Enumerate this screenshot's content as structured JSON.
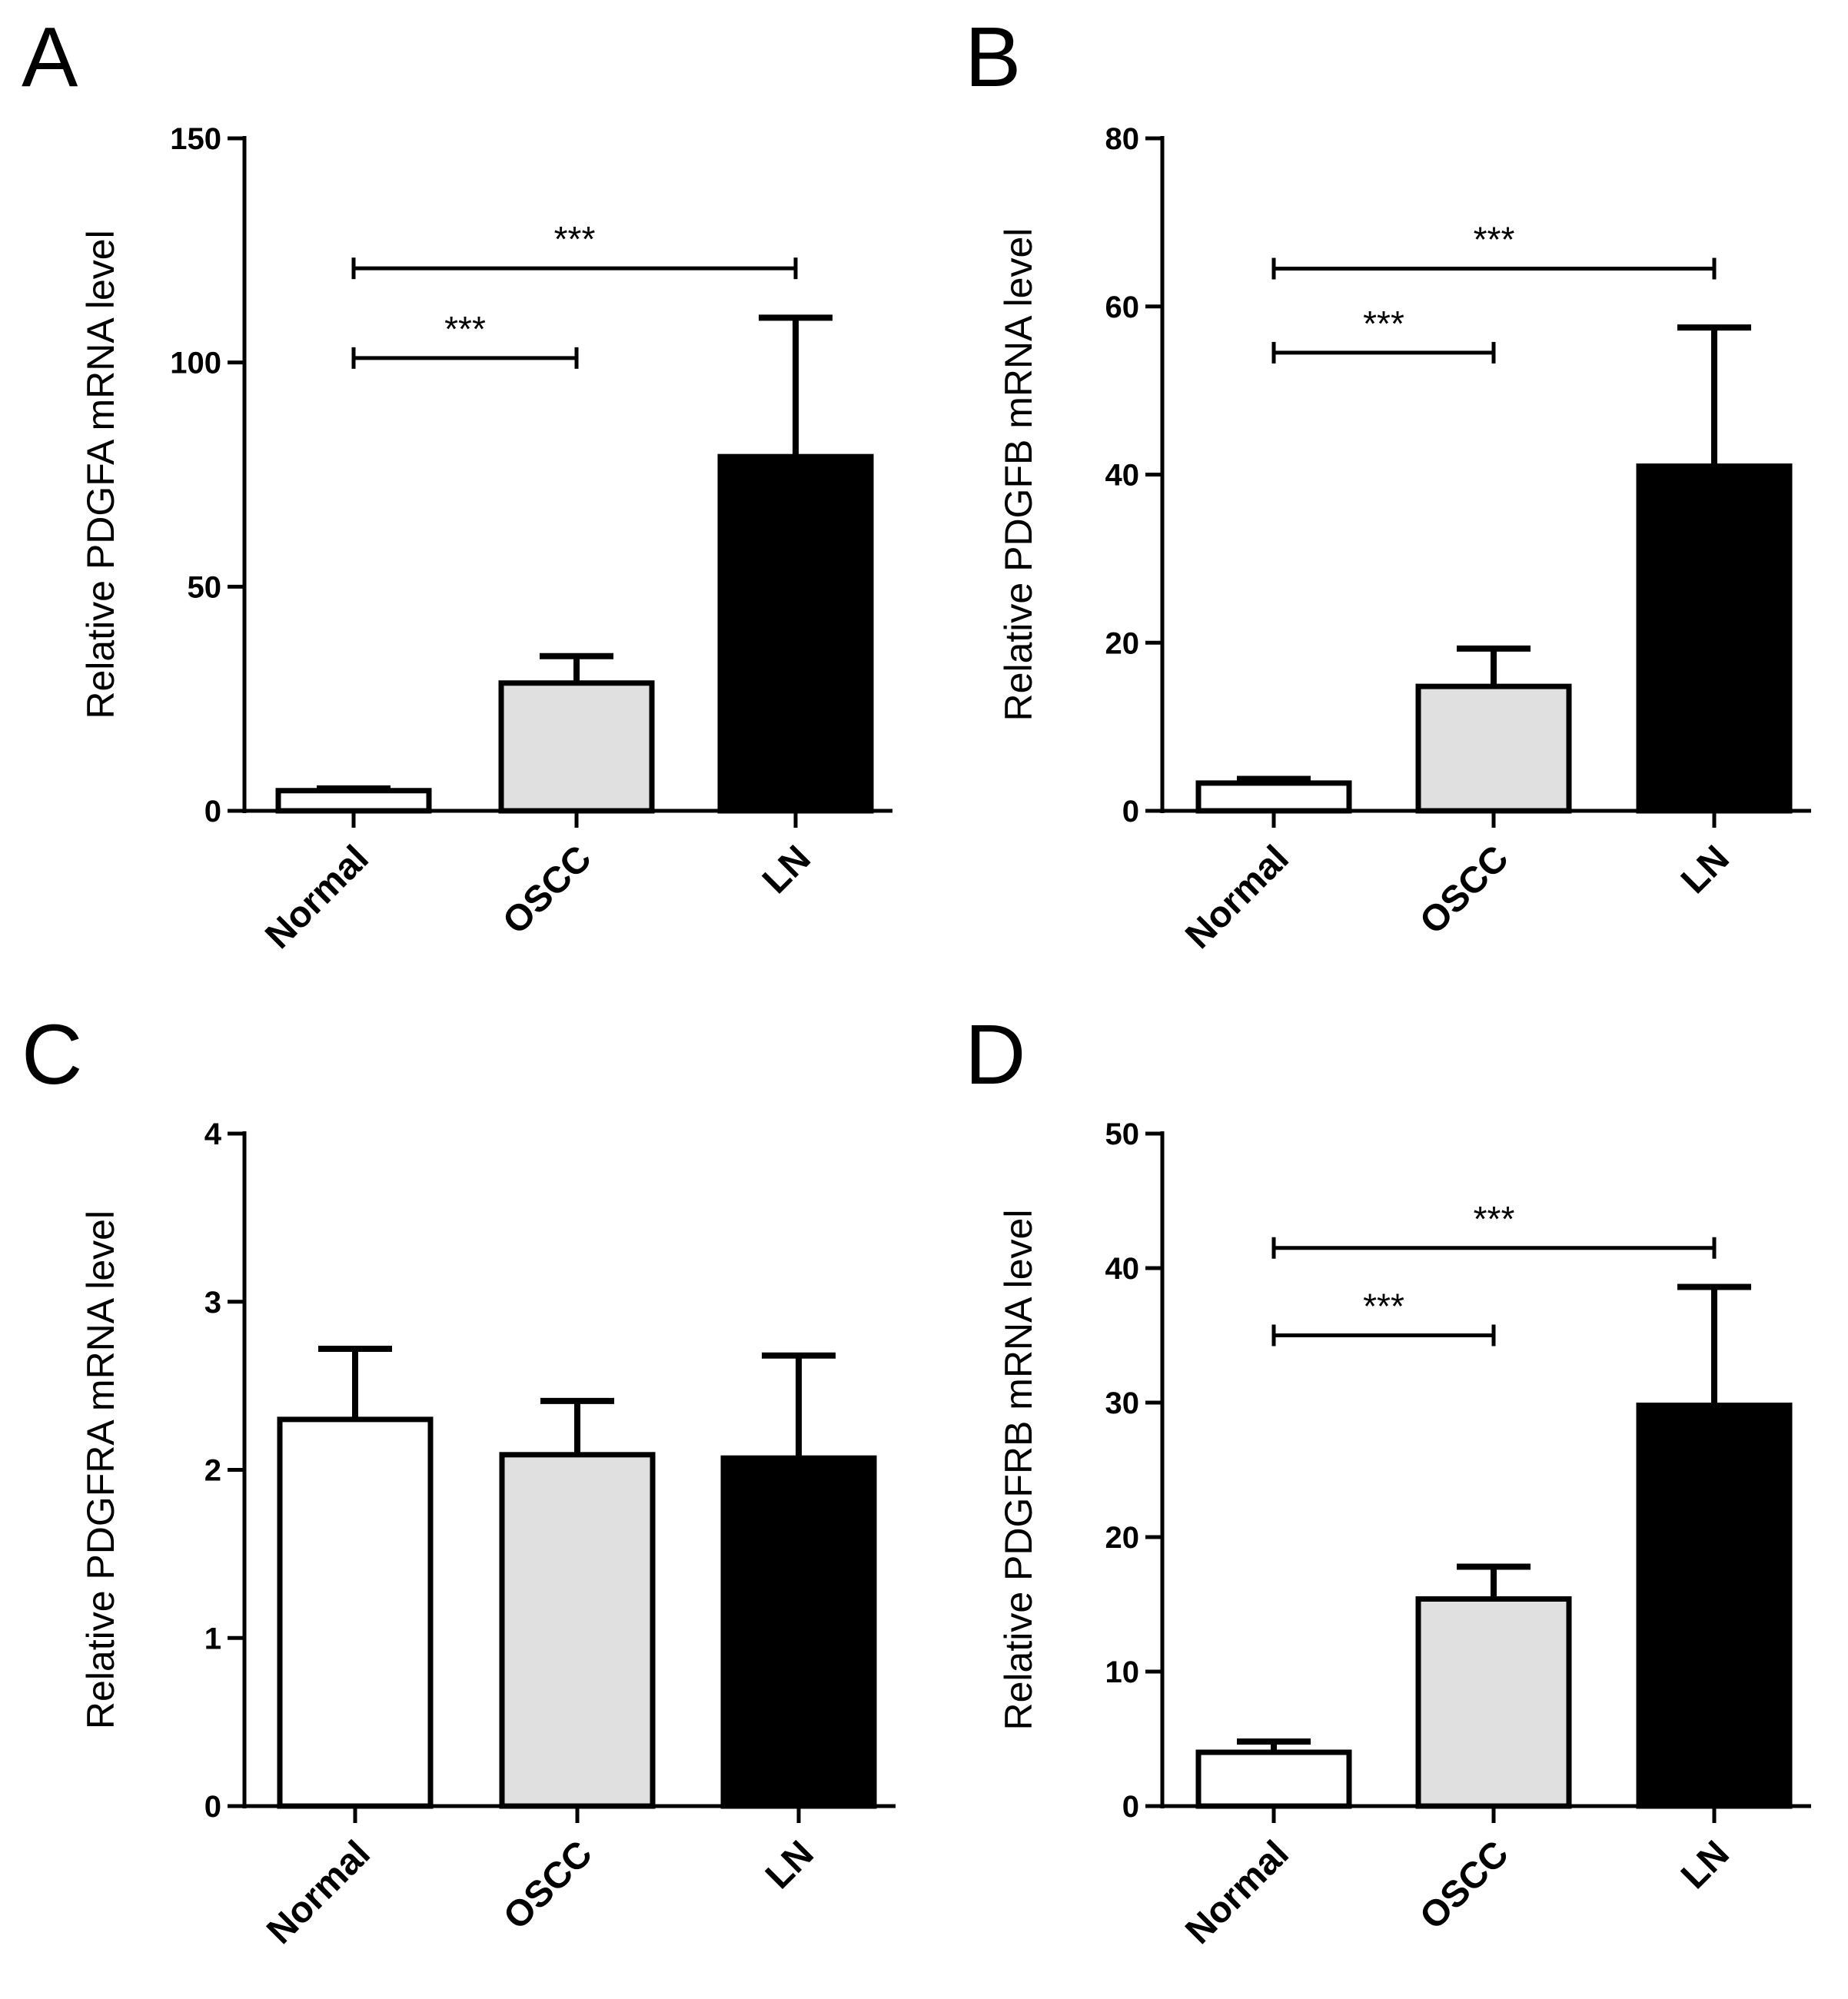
{
  "figure": {
    "colors": {
      "Normal": "#ffffff",
      "OSCC": "#e0e0e0",
      "LN": "#000000",
      "stroke": "#000000"
    }
  },
  "chart_data": [
    {
      "panel": "A",
      "type": "bar",
      "ylabel": "Relative PDGFA mRNA level",
      "categories": [
        "Normal",
        "OSCC",
        "LN"
      ],
      "values": [
        4.5,
        28.5,
        79
      ],
      "error": [
        0.5,
        6,
        31
      ],
      "ylim": [
        0,
        150
      ],
      "yticks": [
        0,
        50,
        100,
        150
      ],
      "significance": [
        {
          "from": "Normal",
          "to": "OSCC",
          "y": 101,
          "label": "***"
        },
        {
          "from": "Normal",
          "to": "LN",
          "y": 121,
          "label": "***"
        }
      ]
    },
    {
      "panel": "B",
      "type": "bar",
      "ylabel": "Relative PDGFB mRNA level",
      "categories": [
        "Normal",
        "OSCC",
        "LN"
      ],
      "values": [
        3.3,
        14.8,
        41
      ],
      "error": [
        0.5,
        4.5,
        16.5
      ],
      "ylim": [
        0,
        80
      ],
      "yticks": [
        0,
        20,
        40,
        60,
        80
      ],
      "significance": [
        {
          "from": "Normal",
          "to": "OSCC",
          "y": 54.5,
          "label": "***"
        },
        {
          "from": "Normal",
          "to": "LN",
          "y": 64.5,
          "label": "***"
        }
      ]
    },
    {
      "panel": "C",
      "type": "bar",
      "ylabel": "Relative PDGFRA mRNA level",
      "categories": [
        "Normal",
        "OSCC",
        "LN"
      ],
      "values": [
        2.3,
        2.09,
        2.07
      ],
      "error": [
        0.42,
        0.32,
        0.61
      ],
      "ylim": [
        0,
        4
      ],
      "yticks": [
        0,
        1,
        2,
        3,
        4
      ],
      "significance": []
    },
    {
      "panel": "D",
      "type": "bar",
      "ylabel": "Relative PDGFRB mRNA level",
      "categories": [
        "Normal",
        "OSCC",
        "LN"
      ],
      "values": [
        4,
        15.4,
        29.8
      ],
      "error": [
        0.8,
        2.4,
        8.8
      ],
      "ylim": [
        0,
        50
      ],
      "yticks": [
        0,
        10,
        20,
        30,
        40,
        50
      ],
      "significance": [
        {
          "from": "Normal",
          "to": "OSCC",
          "y": 35,
          "label": "***"
        },
        {
          "from": "Normal",
          "to": "LN",
          "y": 41.5,
          "label": "***"
        }
      ]
    }
  ]
}
